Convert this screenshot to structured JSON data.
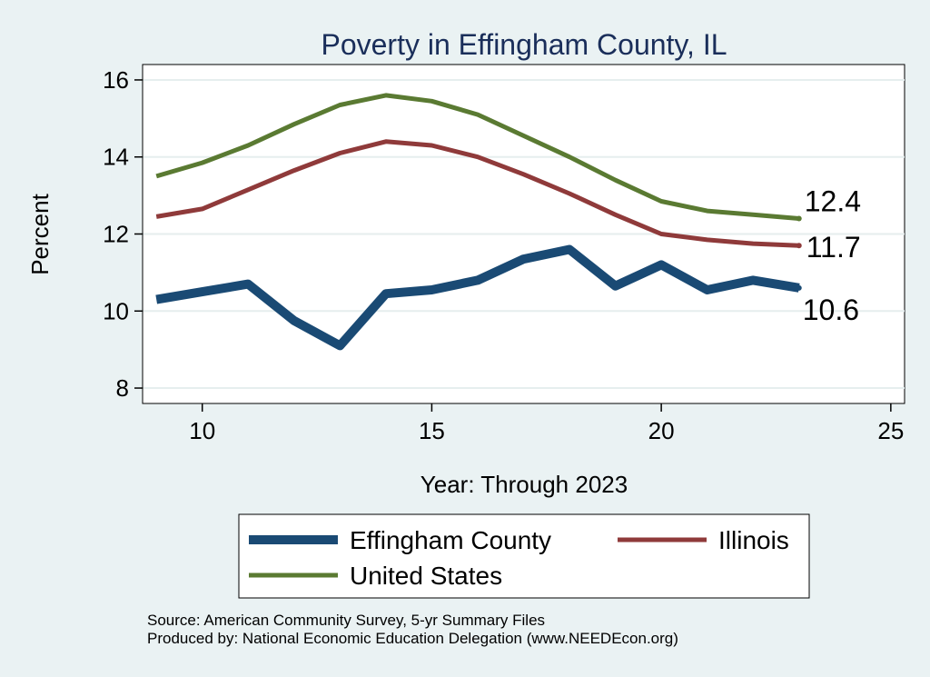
{
  "chart_data": {
    "type": "line",
    "title": "Poverty in Effingham County, IL",
    "xlabel": "Year: Through 2023",
    "ylabel": "Percent",
    "xlim": [
      8.7,
      25.3
    ],
    "ylim": [
      7.6,
      16.4
    ],
    "xticks": [
      "10",
      "15",
      "20",
      "25"
    ],
    "yticks": [
      "8",
      "10",
      "12",
      "14",
      "16"
    ],
    "grid": true,
    "legend_position": "bottom",
    "series": [
      {
        "name": "Effingham County",
        "color": "#1a4a74",
        "width": "thick",
        "x": [
          9,
          10,
          11,
          12,
          13,
          14,
          15,
          16,
          17,
          18,
          19,
          20,
          21,
          22,
          23
        ],
        "y": [
          10.3,
          10.5,
          10.7,
          9.75,
          9.1,
          10.45,
          10.55,
          10.8,
          11.35,
          11.6,
          10.65,
          11.2,
          10.55,
          10.8,
          10.6
        ],
        "end_label": "10.6"
      },
      {
        "name": "Illinois",
        "color": "#8f3a3a",
        "width": "normal",
        "x": [
          9,
          10,
          11,
          12,
          13,
          14,
          15,
          16,
          17,
          18,
          19,
          20,
          21,
          22,
          23
        ],
        "y": [
          12.45,
          12.65,
          13.15,
          13.65,
          14.1,
          14.4,
          14.3,
          14.0,
          13.55,
          13.05,
          12.5,
          12.0,
          11.85,
          11.75,
          11.7
        ],
        "end_label": "11.7"
      },
      {
        "name": "United States",
        "color": "#5a7a32",
        "width": "normal",
        "x": [
          9,
          10,
          11,
          12,
          13,
          14,
          15,
          16,
          17,
          18,
          19,
          20,
          21,
          22,
          23
        ],
        "y": [
          13.5,
          13.85,
          14.3,
          14.85,
          15.35,
          15.6,
          15.45,
          15.1,
          14.55,
          14.0,
          13.4,
          12.85,
          12.6,
          12.5,
          12.4
        ],
        "end_label": "12.4"
      }
    ]
  },
  "footer": {
    "source": "Source: American Community Survey, 5-yr Summary Files",
    "produced_by": "Produced by: National Economic Education Delegation (www.NEEDEcon.org)"
  }
}
